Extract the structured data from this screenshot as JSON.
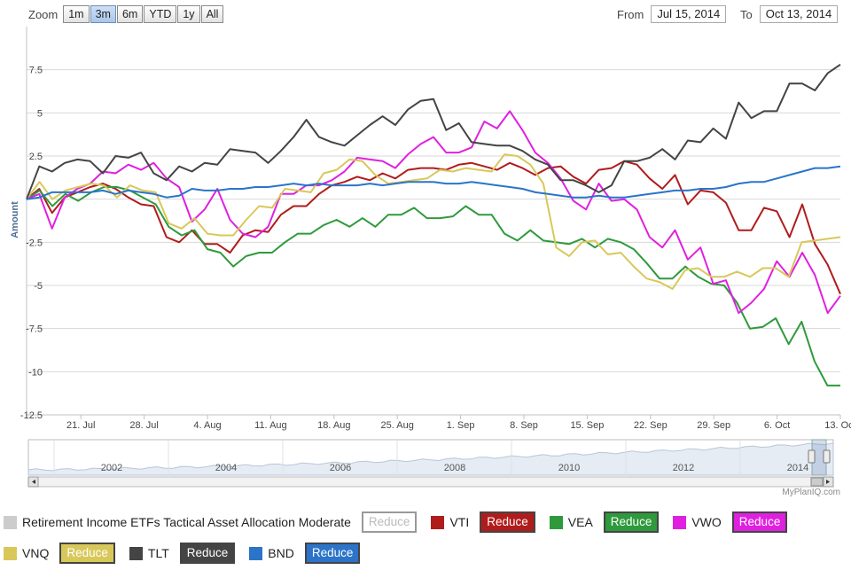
{
  "toolbar": {
    "zoom_label": "Zoom",
    "zoom_buttons": [
      "1m",
      "3m",
      "6m",
      "YTD",
      "1y",
      "All"
    ],
    "active_zoom": "3m",
    "from_label": "From",
    "from_value": "Jul 15, 2014",
    "to_label": "To",
    "to_value": "Oct 13, 2014"
  },
  "credit": "MyPlanIQ.com",
  "chart_data": {
    "type": "line",
    "ylabel": "Amount",
    "ylim": [
      -12.5,
      10
    ],
    "yticks": [
      -12.5,
      -10,
      -7.5,
      -5,
      -2.5,
      0,
      2.5,
      5,
      7.5
    ],
    "ytick_labels": [
      "-12.5",
      "-10",
      "-7.5",
      "-5",
      "-2.5",
      "",
      "2.5",
      "5",
      "7.5"
    ],
    "x_start": "Jul 15, 2014",
    "x_end": "Oct 13, 2014",
    "xtick_labels": [
      "21. Jul",
      "28. Jul",
      "4. Aug",
      "11. Aug",
      "18. Aug",
      "25. Aug",
      "1. Sep",
      "8. Sep",
      "15. Sep",
      "22. Sep",
      "29. Sep",
      "6. Oct",
      "13. Oct"
    ],
    "grid": true,
    "series": [
      {
        "name": "VTI",
        "color": "#b01c1c",
        "values": [
          0,
          0.6,
          -0.8,
          0.1,
          0.4,
          0.7,
          0.9,
          0.6,
          0.1,
          -0.3,
          -0.4,
          -2.2,
          -2.5,
          -1.8,
          -2.6,
          -2.6,
          -3.1,
          -2.1,
          -1.8,
          -1.9,
          -0.9,
          -0.4,
          -0.4,
          0.3,
          0.8,
          1,
          1.3,
          1.1,
          1.5,
          1.2,
          1.7,
          1.8,
          1.8,
          1.7,
          2,
          2.1,
          1.9,
          1.7,
          2.1,
          1.8,
          1.4,
          1.8,
          1.9,
          1.3,
          0.9,
          1.7,
          1.8,
          2.2,
          2,
          1.2,
          0.6,
          1.4,
          -0.3,
          0.5,
          0.4,
          -0.2,
          -1.8,
          -1.8,
          -0.5,
          -0.7,
          -2.2,
          -0.3,
          -2.6,
          -3.8,
          -5.5
        ]
      },
      {
        "name": "VEA",
        "color": "#2e9a3c",
        "values": [
          0,
          0.5,
          -0.4,
          0.3,
          -0.1,
          0.4,
          0.7,
          0.7,
          0.5,
          0.1,
          -0.3,
          -1.6,
          -2.1,
          -1.8,
          -2.9,
          -3.1,
          -3.9,
          -3.3,
          -3.1,
          -3.1,
          -2.5,
          -2,
          -2,
          -1.5,
          -1.2,
          -1.6,
          -1.1,
          -1.6,
          -0.9,
          -0.9,
          -0.5,
          -1.1,
          -1.1,
          -1,
          -0.4,
          -0.9,
          -0.9,
          -2,
          -2.4,
          -1.8,
          -2.4,
          -2.5,
          -2.6,
          -2.3,
          -2.8,
          -2.3,
          -2.5,
          -2.9,
          -3.7,
          -4.6,
          -4.6,
          -3.9,
          -4.5,
          -4.9,
          -5,
          -6,
          -7.5,
          -7.4,
          -6.9,
          -8.4,
          -7.1,
          -9.4,
          -10.8,
          -10.8
        ]
      },
      {
        "name": "VWO",
        "color": "#e020e0",
        "values": [
          0,
          0.3,
          -1.7,
          0.1,
          0.6,
          0.9,
          1.6,
          1.5,
          2,
          1.7,
          2.1,
          1.2,
          0.7,
          -1.3,
          -0.6,
          0.6,
          -1.2,
          -2,
          -2.2,
          -1.6,
          0.3,
          0.3,
          0.8,
          0.8,
          1.1,
          1.6,
          2.4,
          2.3,
          2.2,
          1.8,
          2.6,
          3.2,
          3.6,
          2.7,
          2.7,
          3,
          4.5,
          4.1,
          5.1,
          4,
          2.7,
          2.1,
          1.2,
          -0.1,
          -0.6,
          0.9,
          -0.1,
          0,
          -0.6,
          -2.2,
          -2.8,
          -1.8,
          -3.5,
          -2.8,
          -4.9,
          -4.7,
          -6.6,
          -6,
          -5.2,
          -3.6,
          -4.5,
          -3.1,
          -4.4,
          -6.6,
          -5.6
        ]
      },
      {
        "name": "VNQ",
        "color": "#d8c85a",
        "values": [
          0,
          1,
          0,
          0.5,
          0.7,
          0.9,
          0.8,
          0.1,
          0.8,
          0.5,
          0.4,
          -1.4,
          -1.7,
          -1.1,
          -2,
          -2.1,
          -2.1,
          -1.2,
          -0.4,
          -0.5,
          0.6,
          0.5,
          0.4,
          1.5,
          1.7,
          2.3,
          2.2,
          1.4,
          0.9,
          1,
          1.1,
          1.2,
          1.7,
          1.6,
          1.8,
          1.7,
          1.6,
          2.6,
          2.5,
          2,
          0.9,
          -2.8,
          -3.3,
          -2.5,
          -2.4,
          -3.2,
          -3.1,
          -3.9,
          -4.6,
          -4.8,
          -5.2,
          -4.1,
          -4,
          -4.5,
          -4.5,
          -4.2,
          -4.5,
          -4,
          -4,
          -4.5,
          -2.5,
          -2.4,
          -2.3,
          -2.2
        ]
      },
      {
        "name": "TLT",
        "color": "#444444",
        "values": [
          0,
          1.9,
          1.6,
          2.1,
          2.3,
          2.2,
          1.5,
          2.5,
          2.4,
          2.7,
          1.5,
          1.1,
          1.9,
          1.6,
          2.1,
          2,
          2.9,
          2.8,
          2.7,
          2.1,
          2.8,
          3.6,
          4.6,
          3.6,
          3.3,
          3.1,
          3.7,
          4.3,
          4.8,
          4.3,
          5.2,
          5.7,
          5.8,
          4,
          4.4,
          3.3,
          3.2,
          3.1,
          3.1,
          2.8,
          2.3,
          2,
          1.1,
          1.1,
          0.8,
          0.4,
          0.8,
          2.2,
          2.2,
          2.4,
          2.9,
          2.3,
          3.4,
          3.3,
          4.1,
          3.5,
          5.6,
          4.7,
          5.1,
          5.1,
          6.7,
          6.7,
          6.3,
          7.3,
          7.8
        ]
      },
      {
        "name": "BND",
        "color": "#2b74c9",
        "values": [
          0,
          0.1,
          0.4,
          0.4,
          0.4,
          0.4,
          0.5,
          0.3,
          0.5,
          0.4,
          0.3,
          0.1,
          0.2,
          0.6,
          0.5,
          0.5,
          0.6,
          0.6,
          0.7,
          0.7,
          0.8,
          0.9,
          0.8,
          0.9,
          0.8,
          0.8,
          0.8,
          0.9,
          0.8,
          0.9,
          1,
          1,
          1,
          0.9,
          0.9,
          1,
          0.9,
          0.8,
          0.7,
          0.6,
          0.4,
          0.3,
          0.2,
          0.1,
          0.1,
          0.2,
          0.1,
          0.1,
          0.2,
          0.3,
          0.4,
          0.5,
          0.5,
          0.6,
          0.6,
          0.7,
          0.9,
          1,
          1,
          1.2,
          1.4,
          1.6,
          1.8,
          1.8,
          1.9
        ]
      }
    ],
    "navigator": {
      "labels": [
        "2002",
        "2004",
        "2006",
        "2008",
        "2010",
        "2012",
        "2014"
      ]
    }
  },
  "legend": {
    "row1": [
      {
        "name": "Retirement Income ETFs Tactical Asset Allocation Moderate",
        "color": "#cccccc",
        "button": "Reduce",
        "muted": true
      },
      {
        "name": "VTI",
        "color": "#b01c1c",
        "button": "Reduce",
        "muted": false
      },
      {
        "name": "VEA",
        "color": "#2e9a3c",
        "button": "Reduce",
        "muted": false
      },
      {
        "name": "VWO",
        "color": "#e020e0",
        "button": "Reduce",
        "muted": false
      }
    ],
    "row2": [
      {
        "name": "VNQ",
        "color": "#d8c85a",
        "button": "Reduce",
        "muted": false
      },
      {
        "name": "TLT",
        "color": "#444444",
        "button": "Reduce",
        "muted": false
      },
      {
        "name": "BND",
        "color": "#2b74c9",
        "button": "Reduce",
        "muted": false
      }
    ]
  }
}
